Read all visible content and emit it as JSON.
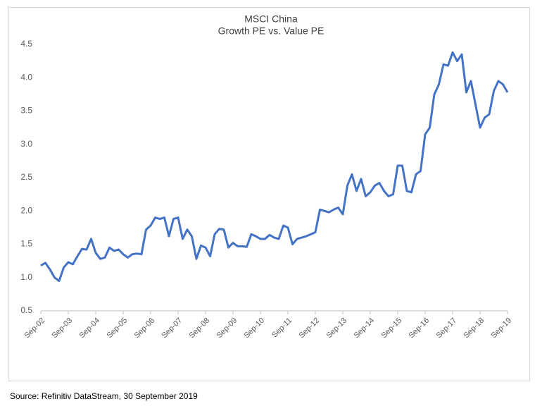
{
  "chart_data": {
    "type": "line",
    "title": "MSCI China",
    "subtitle": "Growth PE vs. Value PE",
    "source": "Source: Refinitiv DataStream, 30 September 2019",
    "categories": [
      "Sep-02",
      null,
      null,
      null,
      null,
      null,
      "Sep-03",
      null,
      null,
      null,
      null,
      null,
      "Sep-04",
      null,
      null,
      null,
      null,
      null,
      "Sep-05",
      null,
      null,
      null,
      null,
      null,
      "Sep-06",
      null,
      null,
      null,
      null,
      null,
      "Sep-07",
      null,
      null,
      null,
      null,
      null,
      "Sep-08",
      null,
      null,
      null,
      null,
      null,
      "Sep-09",
      null,
      null,
      null,
      null,
      null,
      "Sep-10",
      null,
      null,
      null,
      null,
      null,
      "Sep-11",
      null,
      null,
      null,
      null,
      null,
      "Sep-12",
      null,
      null,
      null,
      null,
      null,
      "Sep-13",
      null,
      null,
      null,
      null,
      null,
      "Sep-14",
      null,
      null,
      null,
      null,
      null,
      "Sep-15",
      null,
      null,
      null,
      null,
      null,
      "Sep-16",
      null,
      null,
      null,
      null,
      null,
      "Sep-17",
      null,
      null,
      null,
      null,
      null,
      "Sep-18",
      null,
      null,
      null,
      null,
      null,
      "Sep-19"
    ],
    "series": [
      {
        "name": "Growth PE vs. Value PE",
        "color": "#4472c4",
        "values": [
          1.18,
          1.22,
          1.12,
          1.0,
          0.95,
          1.15,
          1.23,
          1.2,
          1.32,
          1.43,
          1.42,
          1.58,
          1.37,
          1.28,
          1.3,
          1.45,
          1.4,
          1.42,
          1.35,
          1.3,
          1.35,
          1.36,
          1.35,
          1.72,
          1.78,
          1.9,
          1.88,
          1.9,
          1.62,
          1.88,
          1.9,
          1.58,
          1.72,
          1.62,
          1.28,
          1.48,
          1.45,
          1.32,
          1.65,
          1.73,
          1.72,
          1.45,
          1.52,
          1.47,
          1.47,
          1.46,
          1.65,
          1.62,
          1.58,
          1.58,
          1.64,
          1.6,
          1.58,
          1.78,
          1.75,
          1.5,
          1.58,
          1.6,
          1.62,
          1.65,
          1.68,
          2.02,
          2.0,
          1.98,
          2.02,
          2.05,
          1.95,
          2.38,
          2.55,
          2.3,
          2.48,
          2.22,
          2.28,
          2.38,
          2.42,
          2.3,
          2.22,
          2.25,
          2.68,
          2.68,
          2.3,
          2.28,
          2.55,
          2.6,
          3.15,
          3.25,
          3.75,
          3.9,
          4.2,
          4.18,
          4.38,
          4.25,
          4.35,
          3.78,
          3.95,
          3.6,
          3.25,
          3.4,
          3.45,
          3.8,
          3.95,
          3.9,
          3.78
        ]
      }
    ],
    "ylim": [
      0.5,
      4.5
    ],
    "yticks": [
      0.5,
      {
        "value": 1,
        "label": "1.0"
      },
      1.5,
      {
        "value": 2,
        "label": "2.0"
      },
      2.5,
      {
        "value": 3,
        "label": "3.0"
      },
      3.5,
      {
        "value": 4,
        "label": "4.0"
      },
      4.5
    ],
    "grid": false
  }
}
